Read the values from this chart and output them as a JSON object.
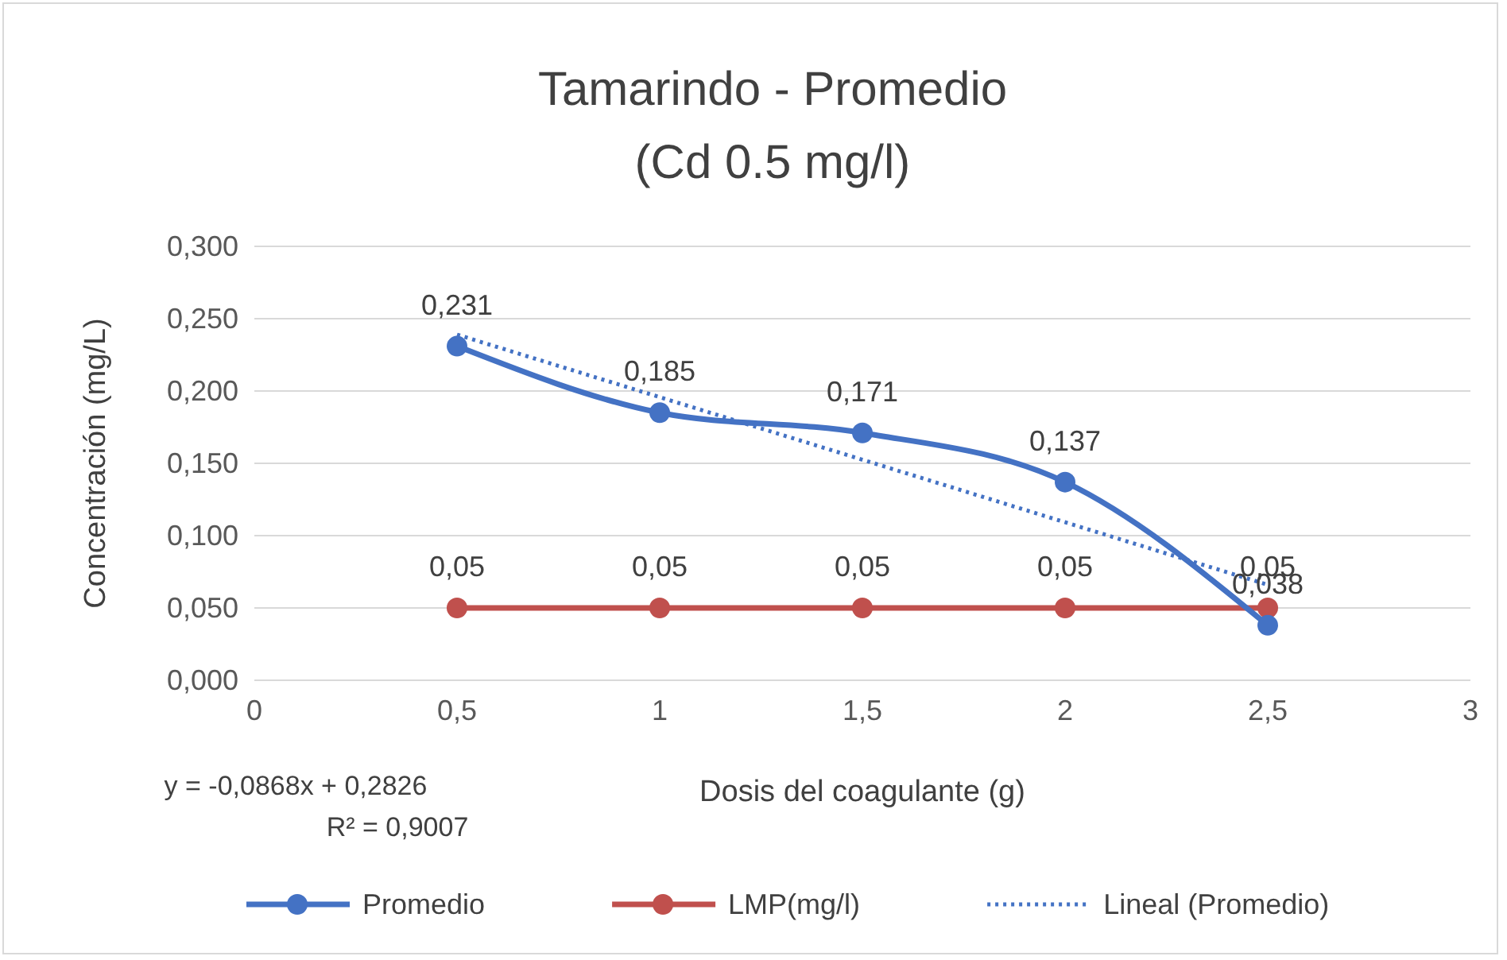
{
  "chart_data": {
    "type": "line",
    "title": "Tamarindo - Promedio",
    "subtitle": "(Cd 0.5 mg/l)",
    "xlabel": "Dosis del coagulante (g)",
    "ylabel": "Concentración (mg/L)",
    "xlim": [
      0,
      3
    ],
    "xticks": [
      0,
      {
        "value": 0.5,
        "label": "0,5"
      },
      1,
      {
        "value": 1.5,
        "label": "1,5"
      },
      2,
      {
        "value": 2.5,
        "label": "2,5"
      },
      3
    ],
    "ylim": [
      0,
      0.3
    ],
    "yticks": [
      {
        "value": 0,
        "label": "0,000"
      },
      {
        "value": 0.05,
        "label": "0,050"
      },
      {
        "value": 0.1,
        "label": "0,100"
      },
      {
        "value": 0.15,
        "label": "0,150"
      },
      {
        "value": 0.2,
        "label": "0,200"
      },
      {
        "value": 0.25,
        "label": "0,250"
      },
      {
        "value": 0.3,
        "label": "0,300"
      }
    ],
    "grid": "y",
    "legend": "bottom",
    "series": [
      {
        "name": "Promedio",
        "color": "#4472c4",
        "x": [
          0.5,
          1,
          1.5,
          2,
          2.5
        ],
        "values": [
          0.231,
          0.185,
          0.171,
          0.137,
          0.038
        ],
        "value_labels": [
          "0,231",
          "0,185",
          "0,171",
          "0,137",
          "0,038"
        ],
        "marker": "circle",
        "line_style": "solid"
      },
      {
        "name": "LMP(mg/l)",
        "color": "#c0504d",
        "x": [
          0.5,
          1,
          1.5,
          2,
          2.5
        ],
        "values": [
          0.05,
          0.05,
          0.05,
          0.05,
          0.05
        ],
        "value_labels": [
          "0,05",
          "0,05",
          "0,05",
          "0,05",
          "0,05"
        ],
        "marker": "circle",
        "line_style": "solid"
      },
      {
        "name": "Lineal (Promedio)",
        "color": "#4472c4",
        "x": [
          0.5,
          2.5
        ],
        "values": [
          0.239,
          0.066
        ],
        "marker": "none",
        "line_style": "dotted"
      }
    ],
    "annotations": [
      "y = -0,0868x + 0,2826",
      "R² = 0,9007"
    ]
  }
}
